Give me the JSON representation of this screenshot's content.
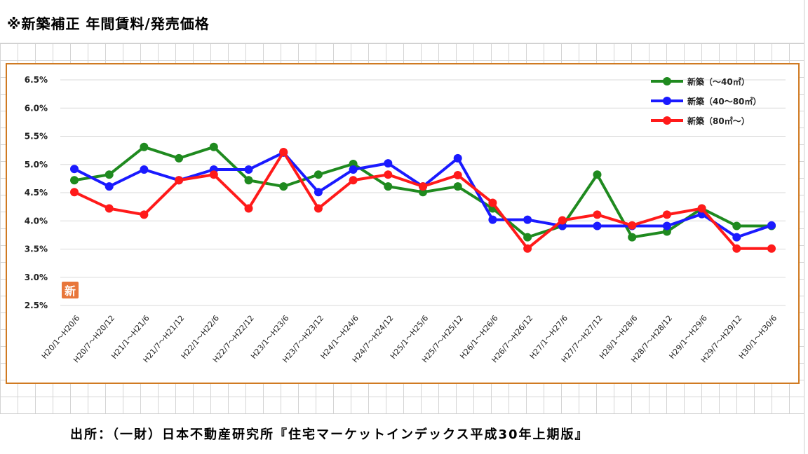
{
  "page": {
    "title": "※新築補正 年間賃料/発売価格",
    "source": "出所：（一財）日本不動産研究所『住宅マーケットインデックス平成30年上期版』",
    "logo_text": "新"
  },
  "colors": {
    "frame": "#d07a22",
    "green": "#1f8a1f",
    "blue": "#1a1aff",
    "red": "#ff1a1a"
  },
  "chart_data": {
    "type": "line",
    "title": "",
    "xlabel": "",
    "ylabel": "",
    "ylim": [
      2.5,
      6.5
    ],
    "yticks": [
      "2.5%",
      "3.0%",
      "3.5%",
      "4.0%",
      "4.5%",
      "5.0%",
      "5.5%",
      "6.0%",
      "6.5%"
    ],
    "ytick_values": [
      2.5,
      3.0,
      3.5,
      4.0,
      4.5,
      5.0,
      5.5,
      6.0,
      6.5
    ],
    "grid": true,
    "legend_position": "top-right",
    "categories": [
      "H20/1～H20/6",
      "H20/7～H20/12",
      "H21/1～H21/6",
      "H21/7～H21/12",
      "H22/1～H22/6",
      "H22/7～H22/12",
      "H23/1～H23/6",
      "H23/7～H23/12",
      "H24/1～H24/6",
      "H24/7～H24/12",
      "H25/1～H25/6",
      "H25/7～H25/12",
      "H26/1～H26/6",
      "H26/7～H26/12",
      "H27/1～H27/6",
      "H27/7～H27/12",
      "H28/1～H28/6",
      "H28/7～H28/12",
      "H29/1～H29/6",
      "H29/7～H29/12",
      "H30/1～H30/6"
    ],
    "series": [
      {
        "name": "新築（～40㎡）",
        "color": "#1f8a1f",
        "values": [
          4.72,
          4.82,
          5.31,
          5.11,
          5.31,
          4.72,
          4.61,
          4.82,
          5.01,
          4.61,
          4.51,
          4.61,
          4.22,
          3.71,
          3.91,
          4.82,
          3.71,
          3.81,
          4.22,
          3.91,
          3.91
        ]
      },
      {
        "name": "新築（40～80㎡）",
        "color": "#1a1aff",
        "values": [
          4.92,
          4.61,
          4.91,
          4.72,
          4.91,
          4.91,
          5.21,
          4.51,
          4.91,
          5.02,
          4.61,
          5.11,
          4.02,
          4.02,
          3.91,
          3.91,
          3.91,
          3.91,
          4.12,
          3.71,
          3.92
        ]
      },
      {
        "name": "新築（80㎡～）",
        "color": "#ff1a1a",
        "values": [
          4.51,
          4.22,
          4.11,
          4.72,
          4.82,
          4.22,
          5.22,
          4.22,
          4.72,
          4.82,
          4.61,
          4.81,
          4.32,
          3.51,
          4.01,
          4.11,
          3.92,
          4.11,
          4.22,
          3.51,
          3.51
        ]
      }
    ]
  }
}
